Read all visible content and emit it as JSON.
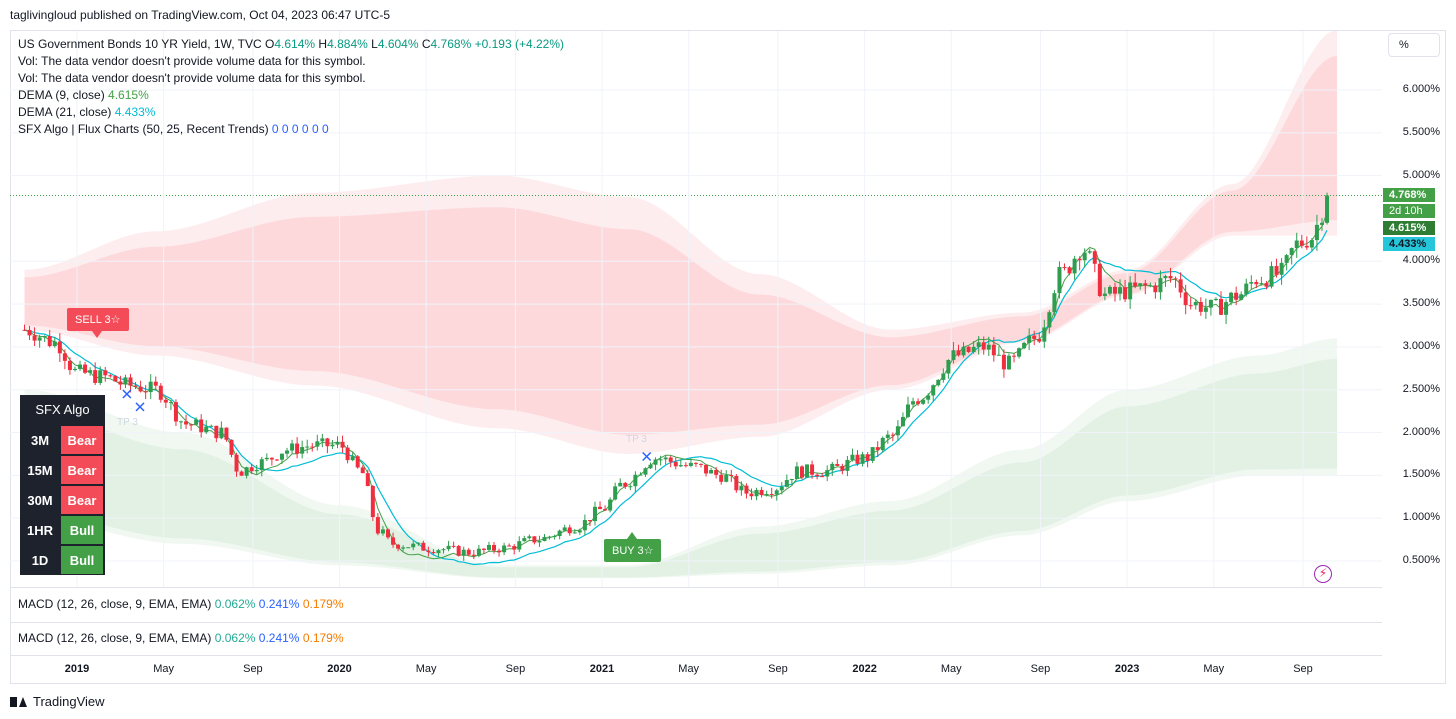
{
  "header": {
    "published": "taglivingloud published on TradingView.com, Oct 04, 2023 06:47 UTC-5"
  },
  "legend": {
    "symbol": "US Government Bonds 10 YR Yield, 1W, TVC",
    "o_label": "O",
    "o": "4.614%",
    "h_label": "H",
    "h": "4.884%",
    "l_label": "L",
    "l": "4.604%",
    "c_label": "C",
    "c": "4.768%",
    "chg": "+0.193 (+4.22%)",
    "vol1": "Vol: The data vendor doesn't provide volume data for this symbol.",
    "vol2": "Vol: The data vendor doesn't provide volume data for this symbol.",
    "dema9_label": "DEMA (9, close)",
    "dema9": "4.615%",
    "dema21_label": "DEMA (21, close)",
    "dema21": "4.433%",
    "sfx_label": "SFX Algo | Flux Charts (50, 25, Recent Trends)",
    "sfx_values": "0 0 0 0 0 0"
  },
  "pct_button": "%",
  "price_pills": {
    "last": "4.768%",
    "countdown": "2d 10h",
    "dema9": "4.615%",
    "dema21": "4.433%"
  },
  "macd": {
    "label": "MACD (12, 26, close, 9, EMA, EMA)",
    "v1": "0.062%",
    "v2": "0.241%",
    "v3": "0.179%"
  },
  "signals": {
    "sell": "SELL 3☆",
    "buy": "BUY 3☆",
    "tp": "TP 3"
  },
  "algo_table": {
    "title": "SFX Algo",
    "rows": [
      {
        "tf": "3M",
        "state": "Bear"
      },
      {
        "tf": "15M",
        "state": "Bear"
      },
      {
        "tf": "30M",
        "state": "Bear"
      },
      {
        "tf": "1HR",
        "state": "Bull"
      },
      {
        "tf": "1D",
        "state": "Bull"
      }
    ]
  },
  "footer": {
    "brand": "TradingView"
  },
  "colors": {
    "up": "#089981",
    "candle_up": "#2e9d4f",
    "candle_down": "#ef2f3f",
    "dema9": "#43a047",
    "dema21": "#00bcd4",
    "bear": "#f44b58",
    "bull": "#43a047"
  },
  "chart_data": {
    "type": "candlestick",
    "title": "US Government Bonds 10 YR Yield, 1W, TVC",
    "y_ticks": [
      "6.000%",
      "5.500%",
      "5.000%",
      "4.000%",
      "3.500%",
      "3.000%",
      "2.500%",
      "2.000%",
      "1.500%",
      "1.000%",
      "0.500%"
    ],
    "ylim": [
      0.2,
      6.6
    ],
    "x_ticks": [
      {
        "label": "2019",
        "date": 2019.0,
        "year": true
      },
      {
        "label": "May",
        "date": 2019.33
      },
      {
        "label": "Sep",
        "date": 2019.67
      },
      {
        "label": "2020",
        "date": 2020.0,
        "year": true
      },
      {
        "label": "May",
        "date": 2020.33
      },
      {
        "label": "Sep",
        "date": 2020.67
      },
      {
        "label": "2021",
        "date": 2021.0,
        "year": true
      },
      {
        "label": "May",
        "date": 2021.33
      },
      {
        "label": "Sep",
        "date": 2021.67
      },
      {
        "label": "2022",
        "date": 2022.0,
        "year": true
      },
      {
        "label": "May",
        "date": 2022.33
      },
      {
        "label": "Sep",
        "date": 2022.67
      },
      {
        "label": "2023",
        "date": 2023.0,
        "year": true
      },
      {
        "label": "May",
        "date": 2023.33
      },
      {
        "label": "Sep",
        "date": 2023.67
      }
    ],
    "xlim": [
      2018.8,
      2024.1
    ],
    "close_path": [
      [
        2018.8,
        3.2
      ],
      [
        2018.92,
        3.05
      ],
      [
        2019.0,
        2.7
      ],
      [
        2019.1,
        2.65
      ],
      [
        2019.2,
        2.55
      ],
      [
        2019.3,
        2.5
      ],
      [
        2019.42,
        2.1
      ],
      [
        2019.55,
        2.0
      ],
      [
        2019.62,
        1.55
      ],
      [
        2019.7,
        1.65
      ],
      [
        2019.8,
        1.8
      ],
      [
        2019.9,
        1.85
      ],
      [
        2020.0,
        1.85
      ],
      [
        2020.08,
        1.55
      ],
      [
        2020.15,
        0.85
      ],
      [
        2020.2,
        0.7
      ],
      [
        2020.35,
        0.65
      ],
      [
        2020.5,
        0.6
      ],
      [
        2020.62,
        0.65
      ],
      [
        2020.75,
        0.75
      ],
      [
        2020.9,
        0.9
      ],
      [
        2021.0,
        1.1
      ],
      [
        2021.08,
        1.4
      ],
      [
        2021.2,
        1.7
      ],
      [
        2021.35,
        1.6
      ],
      [
        2021.45,
        1.5
      ],
      [
        2021.55,
        1.3
      ],
      [
        2021.65,
        1.35
      ],
      [
        2021.75,
        1.55
      ],
      [
        2021.85,
        1.55
      ],
      [
        2022.0,
        1.7
      ],
      [
        2022.1,
        1.95
      ],
      [
        2022.2,
        2.4
      ],
      [
        2022.35,
        2.9
      ],
      [
        2022.45,
        3.0
      ],
      [
        2022.55,
        2.8
      ],
      [
        2022.65,
        3.1
      ],
      [
        2022.75,
        3.85
      ],
      [
        2022.83,
        4.15
      ],
      [
        2022.92,
        3.6
      ],
      [
        2023.0,
        3.65
      ],
      [
        2023.08,
        3.7
      ],
      [
        2023.17,
        3.8
      ],
      [
        2023.25,
        3.5
      ],
      [
        2023.33,
        3.45
      ],
      [
        2023.42,
        3.6
      ],
      [
        2023.5,
        3.8
      ],
      [
        2023.58,
        3.85
      ],
      [
        2023.65,
        4.2
      ],
      [
        2023.7,
        4.28
      ],
      [
        2023.75,
        4.6
      ],
      [
        2023.78,
        4.768
      ]
    ],
    "series": [
      {
        "name": "DEMA (9, close)",
        "last": 4.615
      },
      {
        "name": "DEMA (21, close)",
        "last": 4.433
      }
    ],
    "last_close": 4.768,
    "bear_cloud": [
      [
        2018.8,
        3.9,
        3.2
      ],
      [
        2019.3,
        4.35,
        2.9
      ],
      [
        2019.9,
        4.8,
        2.55
      ],
      [
        2020.6,
        5.0,
        2.05
      ],
      [
        2021.1,
        4.75,
        1.75
      ],
      [
        2021.6,
        3.85,
        1.95
      ],
      [
        2022.1,
        3.2,
        2.5
      ],
      [
        2022.6,
        3.4,
        3.05
      ],
      [
        2023.0,
        3.9,
        3.6
      ],
      [
        2023.4,
        4.9,
        4.3
      ],
      [
        2023.8,
        6.7,
        4.3
      ]
    ],
    "bull_cloud": [
      [
        2018.8,
        2.5,
        1.0
      ],
      [
        2019.4,
        2.0,
        0.7
      ],
      [
        2020.0,
        1.15,
        0.45
      ],
      [
        2020.6,
        0.45,
        0.3
      ],
      [
        2021.1,
        0.45,
        0.3
      ],
      [
        2021.6,
        0.9,
        0.35
      ],
      [
        2022.1,
        1.2,
        0.45
      ],
      [
        2022.6,
        1.8,
        0.8
      ],
      [
        2023.0,
        2.5,
        1.2
      ],
      [
        2023.5,
        2.9,
        1.5
      ],
      [
        2023.8,
        3.1,
        1.5
      ]
    ],
    "annotations": [
      {
        "text": "SELL 3☆",
        "date": 2019.12,
        "value": 3.3
      },
      {
        "text": "BUY 3☆",
        "date": 2021.12,
        "value": 0.9
      },
      {
        "text": "TP 3",
        "date": 2019.22,
        "value": 2.25
      },
      {
        "text": "TP 3",
        "date": 2021.17,
        "value": 1.75
      }
    ]
  }
}
